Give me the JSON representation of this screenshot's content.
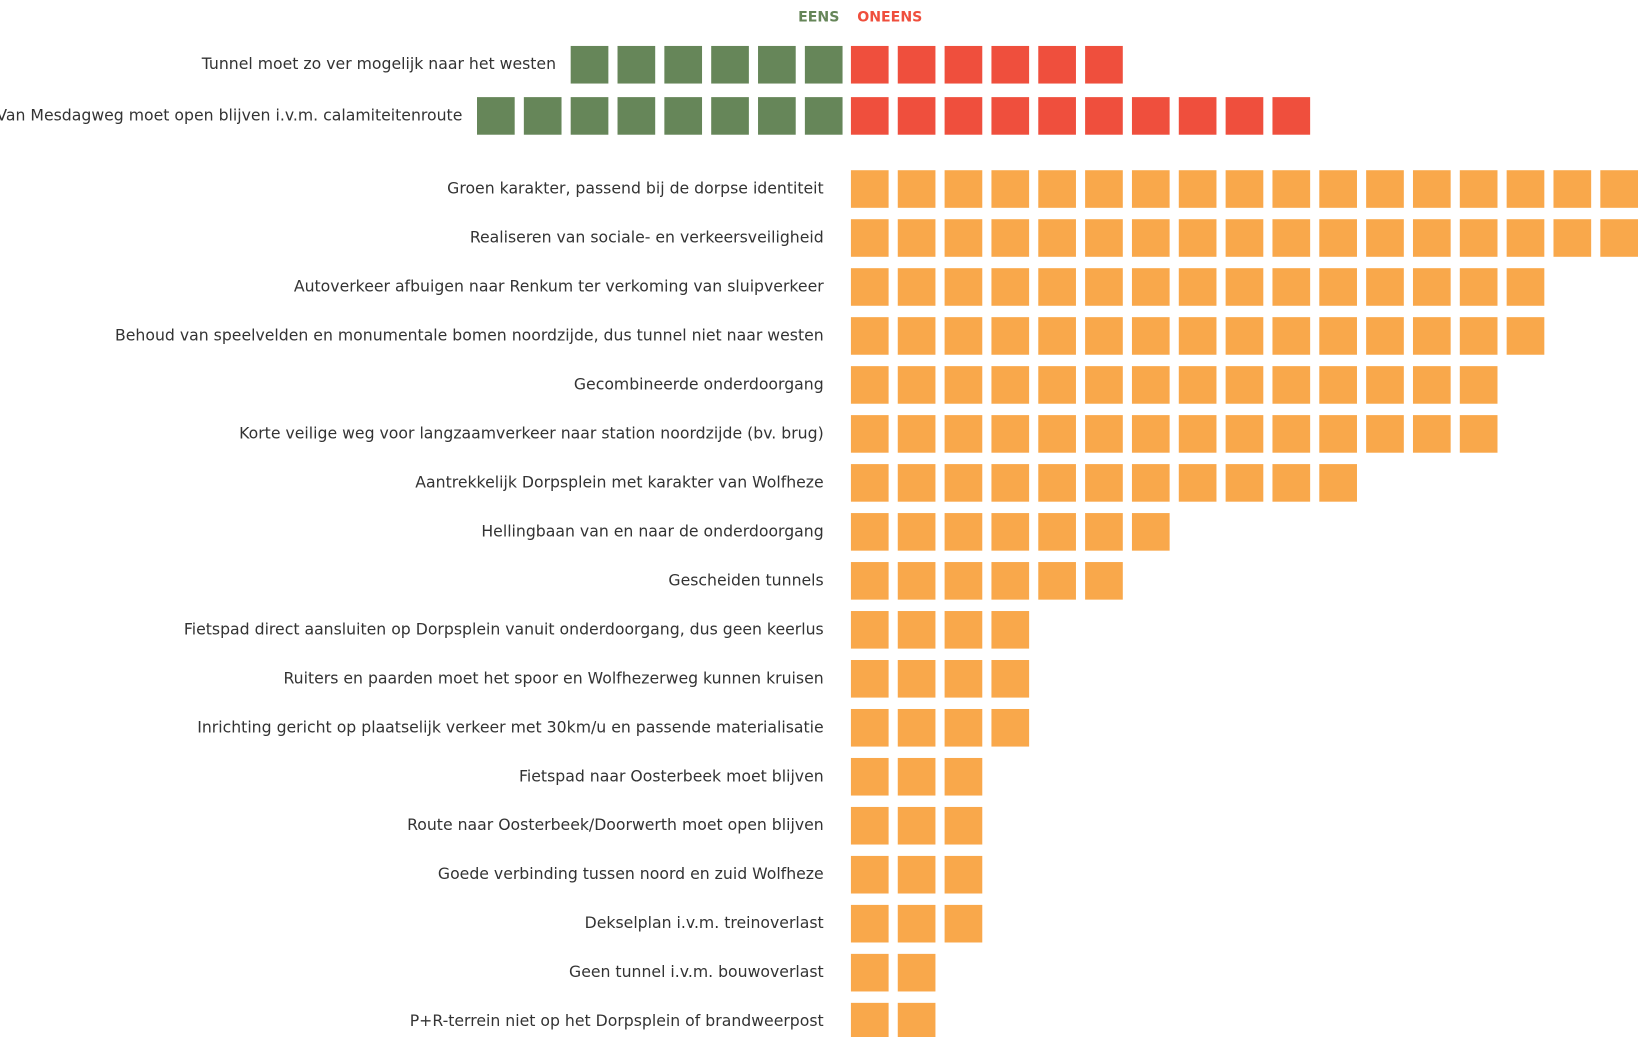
{
  "chart_data": [
    {
      "type": "diverging-unit",
      "categories": [
        "Tunnel moet zo ver mogelijk naar het westen",
        "Van Mesdagweg moet open blijven i.v.m. calamiteitenroute"
      ],
      "series": [
        {
          "name": "EENS",
          "color": "#668659",
          "values": [
            6,
            8
          ]
        },
        {
          "name": "ONEENS",
          "color": "#ef4f3d",
          "values": [
            6,
            10
          ]
        }
      ]
    },
    {
      "type": "unit",
      "color": "#f9a84b",
      "categories": [
        "Groen karakter, passend bij de dorpse identiteit",
        "Realiseren van sociale- en verkeersveiligheid",
        "Autoverkeer afbuigen naar Renkum ter verkoming van sluipverkeer",
        "Behoud van speelvelden en monumentale bomen noordzijde, dus tunnel niet naar westen",
        "Gecombineerde onderdoorgang",
        "Korte veilige weg voor langzaamverkeer naar station noordzijde (bv. brug)",
        "Aantrekkelijk Dorpsplein met karakter van Wolfheze",
        "Hellingbaan van en naar de onderdoorgang",
        "Gescheiden tunnels",
        "Fietspad direct aansluiten op Dorpsplein vanuit onderdoorgang, dus geen keerlus",
        "Ruiters en paarden moet het spoor en Wolfhezerweg kunnen kruisen",
        "Inrichting gericht op plaatselijk verkeer met 30km/u en passende materialisatie",
        "Fietspad naar Oosterbeek moet blijven",
        "Route naar Oosterbeek/Doorwerth moet open blijven",
        "Goede verbinding tussen noord en zuid Wolfheze",
        "Dekselplan i.v.m. treinoverlast",
        "Geen tunnel i.v.m. bouwoverlast",
        "P+R-terrein niet op het Dorpsplein of brandweerpost"
      ],
      "values": [
        17,
        17,
        15,
        15,
        14,
        14,
        11,
        7,
        6,
        4,
        4,
        4,
        3,
        3,
        3,
        3,
        2,
        2
      ]
    }
  ]
}
